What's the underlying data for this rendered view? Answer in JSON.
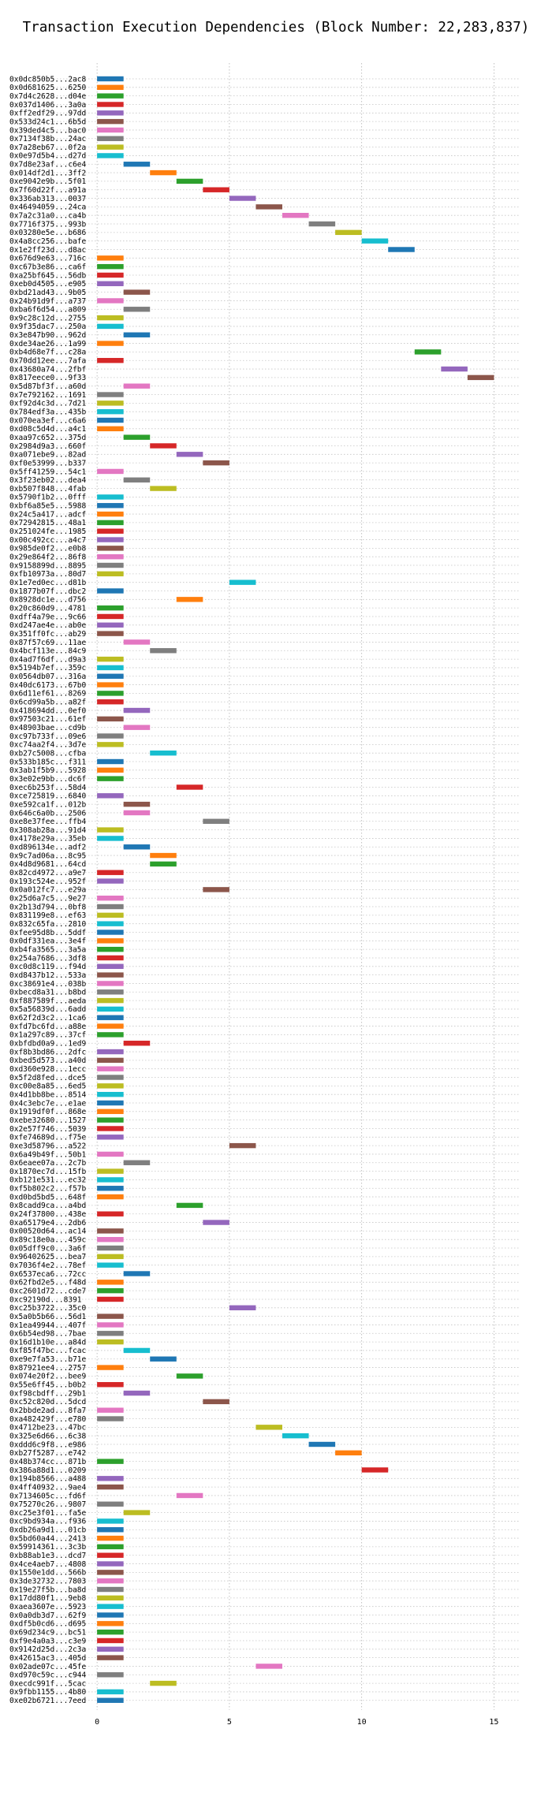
{
  "chart_data": {
    "type": "bar",
    "orientation": "horizontal",
    "title": "Transaction Execution Dependencies (Block Number: 22,283,837)",
    "xlabel": "",
    "ylabel": "",
    "xlim": [
      -2,
      16
    ],
    "xticks": [
      0,
      5,
      10,
      15
    ],
    "grid": true,
    "legend": "none",
    "bar_length": 1,
    "palette": [
      "#1f77b4",
      "#ff7f0e",
      "#2ca02c",
      "#d62728",
      "#9467bd",
      "#8c564b",
      "#e377c2",
      "#7f7f7f",
      "#bcbd22",
      "#17becf"
    ],
    "categories": [
      "0x0dc850b5...2ac8",
      "0x0d681625...6250",
      "0x7d4c2628...d04e",
      "0x037d1406...3a0a",
      "0xff2edf29...97dd",
      "0x533d24c1...6b5d",
      "0x39ded4c5...bac0",
      "0x7134f38b...24ac",
      "0x7a28eb67...0f2a",
      "0x0e97d5b4...d27d",
      "0x7d8e23af...c6e4",
      "0x014df2d1...3ff2",
      "0xe9042e9b...5f01",
      "0x7f60d22f...a91a",
      "0x336ab313...0037",
      "0x46494059...24ca",
      "0x7a2c31a0...ca4b",
      "0x7716f375...993b",
      "0x03280e5e...b686",
      "0x4a8cc256...bafe",
      "0x1e2ff23d...d8ac",
      "0x676d9e63...716c",
      "0xc67b3e86...ca6f",
      "0xa25bf645...56db",
      "0xeb0d4505...e905",
      "0xbd21ad43...9b05",
      "0x24b91d9f...a737",
      "0xba6f6d54...a809",
      "0x9c28c12d...2755",
      "0x9f35dac7...250a",
      "0x3e847b90...962d",
      "0xde34ae26...1a99",
      "0xb4d68e7f...c28a",
      "0x70dd12ee...7afa",
      "0x43680a74...2fbf",
      "0x817eece0...9f33",
      "0x5d87bf3f...a60d",
      "0x7e792162...1691",
      "0xf92d4c3d...7d21",
      "0x784edf3a...435b",
      "0x070ea3ef...c6a6",
      "0xd08c5d4d...a4c1",
      "0xaa97c652...375d",
      "0x2984d9a3...660f",
      "0xa071ebe9...82ad",
      "0xf0e53999...b337",
      "0x5ff41259...54c1",
      "0x3f23eb02...dea4",
      "0xb507f848...4fab",
      "0x5790f1b2...0fff",
      "0xbf6a85e5...5988",
      "0x24c5a417...adcf",
      "0x72942815...48a1",
      "0x251024fe...1985",
      "0x00c492cc...a4c7",
      "0x985de0f2...e0b8",
      "0x29e864f2...86f8",
      "0x9158899d...8895",
      "0xfb10973a...80d7",
      "0x1e7ed0ec...d81b",
      "0x1877b07f...dbc2",
      "0x8928dc1e...d756",
      "0x20c860d9...4781",
      "0xdff4a79e...9c66",
      "0xd247ae4e...ab0e",
      "0x351ff0fc...ab29",
      "0x87f57c69...11ae",
      "0x4bcf113e...84c9",
      "0x4ad7f6df...d9a3",
      "0x5194b7ef...359c",
      "0x0564db07...316a",
      "0x40dc6173...67b0",
      "0x6d11ef61...8269",
      "0x6cd99a5b...a82f",
      "0x418694dd...0ef0",
      "0x97503c21...61ef",
      "0x48903bae...cd9b",
      "0xc97b733f...09e6",
      "0xc74aa2f4...3d7e",
      "0xb27c5008...cfba",
      "0x533b185c...f311",
      "0x3ab1f5b9...5928",
      "0x3e02e9bb...dc6f",
      "0xec6b253f...58d4",
      "0xce725819...6840",
      "0xe592ca1f...012b",
      "0x646c6a0b...2506",
      "0xe8e37fee...ffb4",
      "0x308ab28a...91d4",
      "0x4178e29a...35eb",
      "0xd896134e...adf2",
      "0x9c7ad06a...8c95",
      "0x4d8d9681...64cd",
      "0x82cd4972...a9e7",
      "0x193c524e...952f",
      "0x0a012fc7...e29a",
      "0x25d6a7c5...9e27",
      "0x2b13d794...0bf8",
      "0x831199e8...ef63",
      "0x832c65fa...2810",
      "0xfee95d8b...5ddf",
      "0x0df331ea...3e4f",
      "0xb4fa3565...3a5a",
      "0x254a7686...3df8",
      "0xc0d8c119...f94d",
      "0xd8437b12...533a",
      "0xc38691e4...038b",
      "0xbecd8a31...b8bd",
      "0xf887589f...aeda",
      "0x5a56839d...6add",
      "0x62f2d3c2...1ca6",
      "0xfd7bc6fd...a88e",
      "0x1a297c89...37cf",
      "0xbfdbd0a9...1ed9",
      "0xf8b3bd86...2dfc",
      "0xbed5d573...a40d",
      "0xd360e928...1ecc",
      "0x5f2d8fed...dce5",
      "0xc00e8a85...6ed5",
      "0x4d1bb8be...8514",
      "0x4c3ebc7e...e1ae",
      "0x1919df0f...868e",
      "0xebe32680...1527",
      "0x2e57f746...5039",
      "0xfe74689d...f75e",
      "0xe3d58796...a522",
      "0x6a49b49f...50b1",
      "0x6eaee07a...2c7b",
      "0x1870ec7d...15fb",
      "0xb121e531...ec32",
      "0xf5b802c2...f57b",
      "0xd0bd5bd5...648f",
      "0x8cadd9ca...a4bd",
      "0x24f37800...438e",
      "0xa65179e4...2db6",
      "0x00520d64...ac14",
      "0x89c18e0a...459c",
      "0x05dff9c0...3a6f",
      "0x96402625...bea7",
      "0x7036f4e2...78ef",
      "0x6537eca6...72cc",
      "0x62fbd2e5...f48d",
      "0xc2601d72...cde7",
      "0xc92190d...8391",
      "0xc25b3722...35c0",
      "0x5a0b5b66...56d1",
      "0x1ea49944...407f",
      "0x6b54ed98...7bae",
      "0x16d1b10e...a84d",
      "0xf85f47bc...fcac",
      "0xe9e7fa53...b71e",
      "0x87921ee4...2757",
      "0x074e20f2...bee9",
      "0x55e6ff45...b0b2",
      "0xf98cbdff...29b1",
      "0xc52c820d...5dcd",
      "0x2bbde2ad...8fa7",
      "0xa482429f...e780",
      "0x4712be23...47bc",
      "0x325e6d66...6c38",
      "0xddd6c9f8...e986",
      "0xb27f5287...e742",
      "0x48b374cc...871b",
      "0x386a88d1...0209",
      "0x194b8566...a488",
      "0x4ff40932...9ae4",
      "0x7134605c...fd6f",
      "0x75270c26...9807",
      "0xc25e3f01...fa5e",
      "0xc9bd934a...f936",
      "0xdb26a9d1...01cb",
      "0x5bd60a44...2413",
      "0x59914361...3c3b",
      "0xb88ab1e3...dcd7",
      "0x4ce4aeb7...4808",
      "0x1550e1dd...566b",
      "0x3de32732...7803",
      "0x19e27f5b...ba8d",
      "0x17dd80f1...9eb8",
      "0xaea3607e...5923",
      "0x0a0db3d7...62f9",
      "0xdf5b0cd6...d695",
      "0x69d234c9...bc51",
      "0xf9e4a0a3...c3e9",
      "0x9142d25d...2c3a",
      "0x42615ac3...405d",
      "0x02ade07c...45fe",
      "0xd970c59c...c944",
      "0xecdc991f...5cac",
      "0x9fbb1155...4b80",
      "0xe02b6721...7eed"
    ],
    "starts": [
      0,
      0,
      0,
      0,
      0,
      0,
      0,
      0,
      0,
      0,
      1,
      2,
      3,
      4,
      5,
      6,
      7,
      8,
      9,
      10,
      11,
      0,
      0,
      0,
      0,
      1,
      0,
      1,
      0,
      0,
      1,
      0,
      12,
      0,
      13,
      14,
      1,
      0,
      0,
      0,
      0,
      0,
      1,
      2,
      3,
      4,
      0,
      1,
      2,
      0,
      0,
      0,
      0,
      0,
      0,
      0,
      0,
      0,
      0,
      5,
      0,
      3,
      0,
      0,
      0,
      0,
      1,
      2,
      0,
      0,
      0,
      0,
      0,
      0,
      1,
      0,
      1,
      0,
      0,
      2,
      0,
      0,
      0,
      3,
      0,
      1,
      1,
      4,
      0,
      0,
      1,
      2,
      2,
      0,
      0,
      4,
      0,
      0,
      0,
      0,
      0,
      0,
      0,
      0,
      0,
      0,
      0,
      0,
      0,
      0,
      0,
      0,
      0,
      1,
      0,
      0,
      0,
      0,
      0,
      0,
      0,
      0,
      0,
      0,
      0,
      5,
      0,
      1,
      0,
      0,
      0,
      0,
      3,
      0,
      4,
      0,
      0,
      0,
      0,
      0,
      1,
      0,
      0,
      0,
      5,
      0,
      0,
      0,
      0,
      1,
      2,
      0,
      3,
      0,
      1,
      4,
      0,
      0,
      6,
      7,
      8,
      9,
      0,
      10,
      0,
      0,
      3,
      0,
      1,
      0,
      0,
      0,
      0,
      0,
      0,
      0,
      0,
      0,
      0,
      0,
      0,
      0,
      0,
      0,
      0,
      0,
      6,
      0,
      2,
      0,
      0
    ],
    "colors": [
      "#1f77b4",
      "#ff7f0e",
      "#2ca02c",
      "#d62728",
      "#9467bd",
      "#8c564b",
      "#e377c2",
      "#7f7f7f",
      "#bcbd22",
      "#17becf",
      "#1f77b4",
      "#ff7f0e",
      "#2ca02c",
      "#d62728",
      "#9467bd",
      "#8c564b",
      "#e377c2",
      "#7f7f7f",
      "#bcbd22",
      "#17becf",
      "#1f77b4",
      "#ff7f0e",
      "#2ca02c",
      "#d62728",
      "#9467bd",
      "#8c564b",
      "#e377c2",
      "#7f7f7f",
      "#bcbd22",
      "#17becf",
      "#1f77b4",
      "#ff7f0e",
      "#2ca02c",
      "#d62728",
      "#9467bd",
      "#8c564b",
      "#e377c2",
      "#7f7f7f",
      "#bcbd22",
      "#17becf",
      "#1f77b4",
      "#ff7f0e",
      "#2ca02c",
      "#d62728",
      "#9467bd",
      "#8c564b",
      "#e377c2",
      "#7f7f7f",
      "#bcbd22",
      "#17becf",
      "#1f77b4",
      "#ff7f0e",
      "#2ca02c",
      "#d62728",
      "#9467bd",
      "#8c564b",
      "#e377c2",
      "#7f7f7f",
      "#bcbd22",
      "#17becf",
      "#1f77b4",
      "#ff7f0e",
      "#2ca02c",
      "#d62728",
      "#9467bd",
      "#8c564b",
      "#e377c2",
      "#7f7f7f",
      "#bcbd22",
      "#17becf",
      "#1f77b4",
      "#ff7f0e",
      "#2ca02c",
      "#d62728",
      "#9467bd",
      "#8c564b",
      "#e377c2",
      "#7f7f7f",
      "#bcbd22",
      "#17becf",
      "#1f77b4",
      "#ff7f0e",
      "#2ca02c",
      "#d62728",
      "#9467bd",
      "#8c564b",
      "#e377c2",
      "#7f7f7f",
      "#bcbd22",
      "#17becf",
      "#1f77b4",
      "#ff7f0e",
      "#2ca02c",
      "#d62728",
      "#9467bd",
      "#8c564b",
      "#e377c2",
      "#7f7f7f",
      "#bcbd22",
      "#17becf",
      "#1f77b4",
      "#ff7f0e",
      "#2ca02c",
      "#d62728",
      "#9467bd",
      "#8c564b",
      "#e377c2",
      "#7f7f7f",
      "#bcbd22",
      "#17becf",
      "#1f77b4",
      "#ff7f0e",
      "#2ca02c",
      "#d62728",
      "#9467bd",
      "#8c564b",
      "#e377c2",
      "#7f7f7f",
      "#bcbd22",
      "#17becf",
      "#1f77b4",
      "#ff7f0e",
      "#2ca02c",
      "#d62728",
      "#9467bd",
      "#8c564b",
      "#e377c2",
      "#7f7f7f",
      "#bcbd22",
      "#17becf",
      "#1f77b4",
      "#ff7f0e",
      "#2ca02c",
      "#d62728",
      "#9467bd",
      "#8c564b",
      "#e377c2",
      "#7f7f7f",
      "#bcbd22",
      "#17becf",
      "#1f77b4",
      "#ff7f0e",
      "#2ca02c",
      "#d62728",
      "#9467bd",
      "#8c564b",
      "#e377c2",
      "#7f7f7f",
      "#bcbd22",
      "#17becf",
      "#1f77b4",
      "#ff7f0e",
      "#2ca02c",
      "#d62728",
      "#9467bd",
      "#8c564b",
      "#e377c2",
      "#7f7f7f",
      "#bcbd22",
      "#17becf",
      "#1f77b4",
      "#ff7f0e",
      "#2ca02c",
      "#d62728",
      "#9467bd",
      "#8c564b",
      "#e377c2",
      "#7f7f7f",
      "#bcbd22",
      "#17becf",
      "#1f77b4",
      "#ff7f0e",
      "#2ca02c",
      "#d62728",
      "#9467bd",
      "#8c564b",
      "#e377c2",
      "#7f7f7f",
      "#bcbd22",
      "#17becf",
      "#1f77b4",
      "#ff7f0e",
      "#2ca02c",
      "#d62728",
      "#9467bd",
      "#8c564b",
      "#e377c2",
      "#7f7f7f",
      "#bcbd22",
      "#17becf",
      "#1f77b4"
    ]
  }
}
